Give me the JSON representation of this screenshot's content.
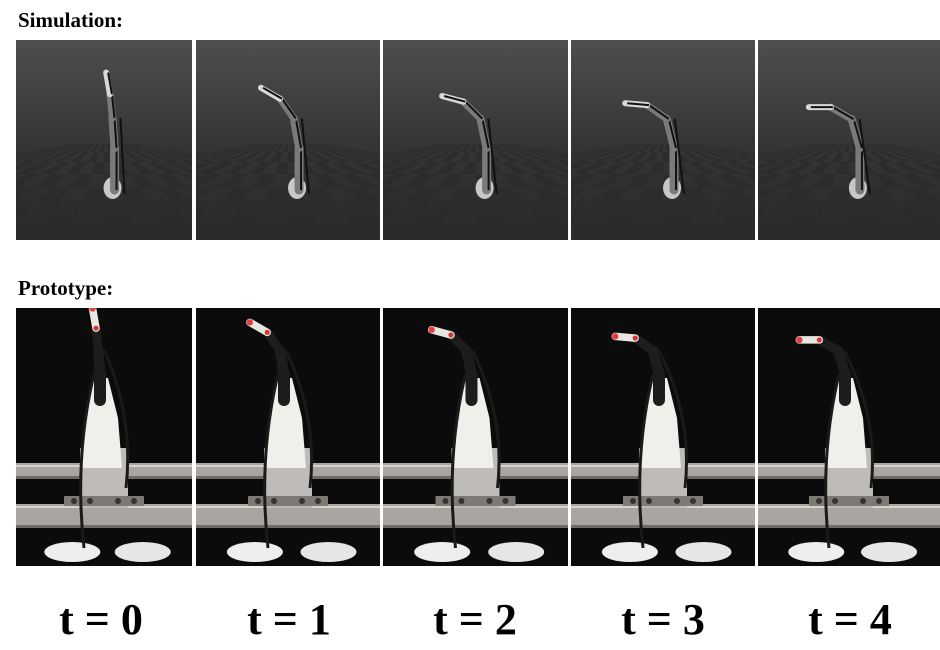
{
  "figure": {
    "simulation_label": "Simulation:",
    "prototype_label": "Prototype:",
    "time_labels": [
      "t = 0",
      "t = 1",
      "t = 2",
      "t = 3",
      "t = 4"
    ]
  }
}
